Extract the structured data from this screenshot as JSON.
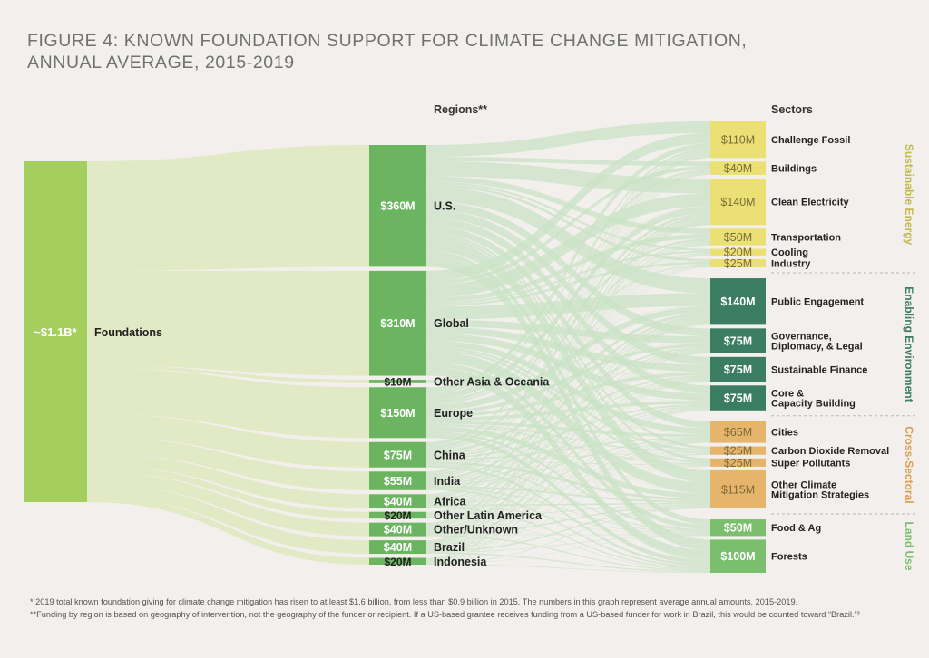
{
  "title_line1": "FIGURE 4: KNOWN FOUNDATION SUPPORT FOR CLIMATE CHANGE MITIGATION,",
  "title_line2": "ANNUAL AVERAGE, 2015-2019",
  "regions_header": "Regions**",
  "sectors_header": "Sectors",
  "source": {
    "value": "~$1.1B*",
    "label": "Foundations",
    "color": "#a4cf5d"
  },
  "colors": {
    "region": "#6bb560",
    "flow_main": "#dfe9c2",
    "flow_cross": "#c9e2c4"
  },
  "regions": [
    {
      "value": "$360M",
      "label": "U.S.",
      "amount": 360
    },
    {
      "value": "$310M",
      "label": "Global",
      "amount": 310
    },
    {
      "value": "$10M",
      "label": "Other Asia & Oceania",
      "amount": 10
    },
    {
      "value": "$150M",
      "label": "Europe",
      "amount": 150
    },
    {
      "value": "$75M",
      "label": "China",
      "amount": 75
    },
    {
      "value": "$55M",
      "label": "India",
      "amount": 55
    },
    {
      "value": "$40M",
      "label": "Africa",
      "amount": 40
    },
    {
      "value": "$20M",
      "label": "Other Latin America",
      "amount": 20
    },
    {
      "value": "$40M",
      "label": "Other/Unknown",
      "amount": 40
    },
    {
      "value": "$40M",
      "label": "Brazil",
      "amount": 40
    },
    {
      "value": "$20M",
      "label": "Indonesia",
      "amount": 20
    }
  ],
  "groups": [
    {
      "name": "Sustainable Energy",
      "color": "#ebe073",
      "text_color": "#c2b84e",
      "sectors": [
        {
          "value": "$110M",
          "label": "Challenge Fossil",
          "amount": 110
        },
        {
          "value": "$40M",
          "label": "Buildings",
          "amount": 40
        },
        {
          "value": "$140M",
          "label": "Clean Electricity",
          "amount": 140
        },
        {
          "value": "$50M",
          "label": "Transportation",
          "amount": 50
        },
        {
          "value": "$20M",
          "label": "Cooling",
          "amount": 20
        },
        {
          "value": "$25M",
          "label": "Industry",
          "amount": 25
        }
      ]
    },
    {
      "name": "Enabling Environment",
      "color": "#3b7d62",
      "text_color": "#3b7d62",
      "sectors": [
        {
          "value": "$140M",
          "label": "Public Engagement",
          "amount": 140
        },
        {
          "value": "$75M",
          "label": "Governance, Diplomacy, & Legal",
          "label_lines": [
            "Governance,",
            "Diplomacy, & Legal"
          ],
          "amount": 75
        },
        {
          "value": "$75M",
          "label": "Sustainable Finance",
          "amount": 75
        },
        {
          "value": "$75M",
          "label": "Core & Capacity Building",
          "label_lines": [
            "Core &",
            "Capacity Building"
          ],
          "amount": 75
        }
      ]
    },
    {
      "name": "Cross-Sectoral",
      "color": "#e7b46c",
      "text_color": "#d9a050",
      "sectors": [
        {
          "value": "$65M",
          "label": "Cities",
          "amount": 65
        },
        {
          "value": "$25M",
          "label": "Carbon Dioxide Removal",
          "amount": 25
        },
        {
          "value": "$25M",
          "label": "Super Pollutants",
          "amount": 25
        },
        {
          "value": "$115M",
          "label": "Other Climate Mitigation Strategies",
          "label_lines": [
            "Other Climate",
            "Mitigation Strategies"
          ],
          "amount": 115
        }
      ]
    },
    {
      "name": "Land Use",
      "color": "#7bbf6e",
      "text_color": "#7bbf6e",
      "sectors": [
        {
          "value": "$50M",
          "label": "Food & Ag",
          "amount": 50
        },
        {
          "value": "$100M",
          "label": "Forests",
          "amount": 100
        }
      ]
    }
  ],
  "footnotes": [
    "*  2019 total known foundation giving for climate change mitigation has risen to at least $1.6 billion, from less than $0.9 billion in 2015. The numbers in this graph represent average annual amounts, 2015-2019.",
    "**Funding by region is based on geography of intervention, not the geography of the funder or recipient. If a US-based grantee receives funding from a US-based funder for work in Brazil, this would be counted toward “Brazil.”³"
  ]
}
